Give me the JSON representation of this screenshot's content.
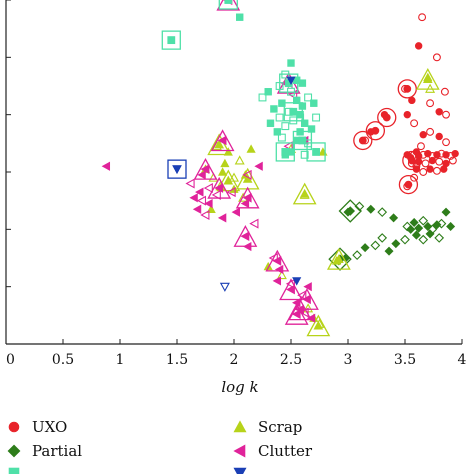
{
  "chart_data": {
    "type": "scatter",
    "title": "",
    "xlabel": "log k",
    "ylabel": "",
    "xlim": [
      0,
      4
    ],
    "ylim": [
      0,
      6
    ],
    "x_ticks": [
      "0",
      "0.5",
      "1",
      "1.5",
      "2",
      "2.5",
      "3",
      "3.5",
      "4"
    ],
    "grid": false,
    "legend": {
      "position": "bottom"
    },
    "series": [
      {
        "name": "UXO",
        "marker": "circle",
        "color": "#e8232a",
        "points": [
          [
            3.65,
            5.7
          ],
          [
            3.62,
            5.2
          ],
          [
            3.78,
            5.0
          ],
          [
            3.85,
            4.4
          ],
          [
            3.72,
            4.2
          ],
          [
            3.8,
            4.05
          ],
          [
            3.86,
            4.0
          ],
          [
            3.5,
            4.45
          ],
          [
            3.56,
            4.25
          ],
          [
            3.52,
            4.0
          ],
          [
            3.58,
            3.85
          ],
          [
            3.66,
            3.65
          ],
          [
            3.72,
            3.7
          ],
          [
            3.8,
            3.62
          ],
          [
            3.86,
            3.52
          ],
          [
            3.64,
            3.45
          ],
          [
            3.52,
            3.3
          ],
          [
            3.32,
            4.0
          ],
          [
            3.2,
            3.7
          ],
          [
            3.15,
            3.55
          ],
          [
            3.6,
            3.35
          ],
          [
            3.58,
            3.3
          ],
          [
            3.62,
            3.28
          ],
          [
            3.66,
            3.3
          ],
          [
            3.7,
            3.32
          ],
          [
            3.74,
            3.28
          ],
          [
            3.78,
            3.3
          ],
          [
            3.82,
            3.32
          ],
          [
            3.86,
            3.3
          ],
          [
            3.9,
            3.28
          ],
          [
            3.94,
            3.32
          ],
          [
            3.56,
            3.15
          ],
          [
            3.62,
            3.18
          ],
          [
            3.68,
            3.15
          ],
          [
            3.74,
            3.2
          ],
          [
            3.8,
            3.18
          ],
          [
            3.86,
            3.15
          ],
          [
            3.92,
            3.2
          ],
          [
            3.6,
            3.05
          ],
          [
            3.66,
            3.0
          ],
          [
            3.72,
            3.05
          ],
          [
            3.78,
            3.02
          ],
          [
            3.84,
            3.05
          ],
          [
            3.52,
            2.75
          ],
          [
            3.58,
            2.9
          ],
          [
            3.55,
            3.25
          ],
          [
            3.6,
            3.1
          ]
        ],
        "open": [
          true,
          false,
          true,
          true,
          true,
          false,
          true,
          true,
          false,
          false,
          true,
          false,
          true,
          false,
          true,
          true,
          false,
          false,
          false,
          true,
          false,
          true,
          false,
          true,
          false,
          true,
          false,
          true,
          false,
          true,
          false,
          true,
          false,
          true,
          false,
          true,
          false,
          true,
          false,
          true,
          false,
          true,
          false,
          true,
          true,
          false,
          true
        ],
        "highlight": [
          [
            3.52,
            4.45
          ],
          [
            3.34,
            3.95
          ],
          [
            3.24,
            3.72
          ],
          [
            3.13,
            3.55
          ],
          [
            3.53,
            2.78
          ],
          [
            3.56,
            3.2
          ]
        ]
      },
      {
        "name": "Partial",
        "marker": "diamond",
        "color": "#2e7d1a",
        "points": [
          [
            3.0,
            2.3
          ],
          [
            3.1,
            2.4
          ],
          [
            3.2,
            2.35
          ],
          [
            3.3,
            2.3
          ],
          [
            3.4,
            2.2
          ],
          [
            3.52,
            2.05
          ],
          [
            3.58,
            2.12
          ],
          [
            3.62,
            2.02
          ],
          [
            3.66,
            2.15
          ],
          [
            3.7,
            2.05
          ],
          [
            3.74,
            2.0
          ],
          [
            3.78,
            2.08
          ],
          [
            3.82,
            2.1
          ],
          [
            3.9,
            2.05
          ],
          [
            3.6,
            1.9
          ],
          [
            3.66,
            1.82
          ],
          [
            3.72,
            1.92
          ],
          [
            3.8,
            1.85
          ],
          [
            3.86,
            2.3
          ],
          [
            3.5,
            1.82
          ],
          [
            3.42,
            1.75
          ],
          [
            3.36,
            1.62
          ],
          [
            3.24,
            1.72
          ],
          [
            3.15,
            1.68
          ],
          [
            3.08,
            1.55
          ],
          [
            2.98,
            1.5
          ],
          [
            2.92,
            1.45
          ],
          [
            3.3,
            1.85
          ],
          [
            3.55,
            2.0
          ]
        ],
        "open": [
          false,
          true,
          false,
          true,
          false,
          true,
          false,
          false,
          true,
          false,
          true,
          false,
          true,
          false,
          false,
          true,
          false,
          true,
          false,
          true,
          false,
          false,
          true,
          false,
          true,
          false,
          false,
          true,
          false
        ],
        "highlight": [
          [
            3.02,
            2.32
          ],
          [
            2.93,
            1.48
          ]
        ]
      },
      {
        "name": "Scrap",
        "marker": "triangle-up",
        "color": "#b7d31a",
        "points": [
          [
            1.85,
            3.45
          ],
          [
            1.95,
            3.35
          ],
          [
            1.75,
            3.05
          ],
          [
            1.82,
            2.9
          ],
          [
            1.9,
            3.0
          ],
          [
            2.0,
            2.9
          ],
          [
            2.1,
            2.95
          ],
          [
            2.05,
            3.2
          ],
          [
            2.15,
            3.4
          ],
          [
            1.92,
            3.15
          ],
          [
            1.88,
            2.75
          ],
          [
            2.0,
            2.7
          ],
          [
            2.08,
            2.55
          ],
          [
            1.8,
            2.35
          ],
          [
            2.62,
            2.6
          ],
          [
            2.9,
            1.45
          ],
          [
            3.7,
            4.65
          ],
          [
            3.72,
            4.45
          ],
          [
            2.75,
            0.35
          ],
          [
            2.7,
            0.45
          ],
          [
            2.65,
            0.62
          ],
          [
            2.78,
            3.35
          ],
          [
            2.5,
            3.4
          ],
          [
            2.3,
            1.35
          ],
          [
            2.42,
            1.2
          ]
        ],
        "open": [
          true,
          false,
          false,
          true,
          false,
          true,
          false,
          true,
          false,
          false,
          true,
          false,
          true,
          false,
          true,
          false,
          false,
          true,
          true,
          false,
          true,
          false,
          true,
          false,
          true
        ],
        "highlight": [
          [
            1.87,
            3.48
          ],
          [
            1.95,
            2.85
          ],
          [
            2.12,
            2.88
          ],
          [
            2.62,
            2.62
          ],
          [
            2.92,
            1.48
          ],
          [
            3.7,
            4.62
          ],
          [
            2.74,
            0.32
          ]
        ]
      },
      {
        "name": "Clutter",
        "marker": "triangle-left",
        "color": "#e0239a",
        "points": [
          [
            0.88,
            3.1
          ],
          [
            1.72,
            2.95
          ],
          [
            1.62,
            2.8
          ],
          [
            1.7,
            2.65
          ],
          [
            1.78,
            2.72
          ],
          [
            1.65,
            2.55
          ],
          [
            1.72,
            2.5
          ],
          [
            1.78,
            2.45
          ],
          [
            1.85,
            2.6
          ],
          [
            1.68,
            2.35
          ],
          [
            1.75,
            2.25
          ],
          [
            1.9,
            2.2
          ],
          [
            1.98,
            2.65
          ],
          [
            2.1,
            2.45
          ],
          [
            2.18,
            2.1
          ],
          [
            2.02,
            2.3
          ],
          [
            2.12,
            2.95
          ],
          [
            2.22,
            3.1
          ],
          [
            2.12,
            1.7
          ],
          [
            2.35,
            1.5
          ],
          [
            2.4,
            1.3
          ],
          [
            2.5,
            1.05
          ],
          [
            2.65,
            1.0
          ],
          [
            2.6,
            0.85
          ],
          [
            2.55,
            0.72
          ],
          [
            2.62,
            0.55
          ],
          [
            2.68,
            0.45
          ],
          [
            1.95,
            6.0
          ],
          [
            2.45,
            4.55
          ],
          [
            2.52,
            4.35
          ],
          [
            2.62,
            3.55
          ],
          [
            2.48,
            3.45
          ],
          [
            2.38,
            1.1
          ]
        ],
        "open": [
          false,
          false,
          true,
          false,
          true,
          false,
          true,
          false,
          true,
          false,
          true,
          false,
          true,
          false,
          true,
          false,
          true,
          false,
          false,
          true,
          false,
          true,
          false,
          true,
          false,
          true,
          false,
          true,
          false,
          true,
          false,
          true,
          false
        ],
        "highlight": [
          [
            1.9,
            3.55
          ],
          [
            1.75,
            3.05
          ],
          [
            2.12,
            2.55
          ],
          [
            1.87,
            2.72
          ],
          [
            2.1,
            1.88
          ],
          [
            2.38,
            1.45
          ],
          [
            2.5,
            0.95
          ],
          [
            2.64,
            0.78
          ],
          [
            2.58,
            0.6
          ],
          [
            2.55,
            0.52
          ],
          [
            1.95,
            6.0
          ],
          [
            2.48,
            4.55
          ]
        ]
      },
      {
        "name": "",
        "marker": "square",
        "color": "#4fe0a8",
        "points": [
          [
            2.05,
            5.7
          ],
          [
            1.45,
            5.3
          ],
          [
            2.5,
            4.9
          ],
          [
            2.45,
            4.7
          ],
          [
            2.55,
            4.6
          ],
          [
            2.4,
            4.5
          ],
          [
            2.6,
            4.55
          ],
          [
            2.5,
            4.4
          ],
          [
            2.55,
            4.25
          ],
          [
            2.42,
            4.2
          ],
          [
            2.65,
            4.3
          ],
          [
            2.35,
            4.1
          ],
          [
            2.48,
            4.05
          ],
          [
            2.58,
            4.0
          ],
          [
            2.7,
            4.2
          ],
          [
            2.52,
            3.9
          ],
          [
            2.62,
            3.85
          ],
          [
            2.45,
            3.8
          ],
          [
            2.58,
            3.7
          ],
          [
            2.68,
            3.75
          ],
          [
            2.42,
            3.6
          ],
          [
            2.55,
            3.55
          ],
          [
            2.65,
            3.5
          ],
          [
            2.5,
            3.35
          ],
          [
            2.62,
            3.3
          ],
          [
            2.32,
            3.85
          ],
          [
            2.4,
            3.95
          ],
          [
            2.3,
            4.4
          ],
          [
            2.72,
            3.95
          ],
          [
            2.6,
            4.15
          ],
          [
            2.45,
            3.3
          ],
          [
            2.25,
            4.3
          ],
          [
            2.38,
            3.7
          ],
          [
            2.58,
            3.95
          ]
        ],
        "open": [
          false,
          false,
          false,
          true,
          false,
          true,
          false,
          true,
          false,
          false,
          true,
          false,
          true,
          false,
          false,
          true,
          false,
          true,
          false,
          false,
          true,
          false,
          true,
          false,
          true,
          false,
          true,
          false,
          true,
          false,
          false,
          true,
          false,
          true
        ],
        "highlight": [
          [
            1.95,
            6.0
          ],
          [
            1.45,
            5.3
          ],
          [
            2.48,
            4.55
          ],
          [
            2.52,
            4.05
          ],
          [
            2.45,
            3.35
          ],
          [
            2.6,
            3.55
          ],
          [
            2.72,
            3.35
          ]
        ]
      },
      {
        "name": "",
        "marker": "triangle-down",
        "color": "#1a3fb5",
        "points": [
          [
            1.5,
            3.05
          ],
          [
            1.92,
            1.0
          ],
          [
            2.5,
            4.6
          ],
          [
            2.55,
            1.1
          ]
        ],
        "open": [
          false,
          true,
          false,
          false
        ],
        "highlight": [
          [
            1.5,
            3.05
          ]
        ]
      }
    ]
  }
}
